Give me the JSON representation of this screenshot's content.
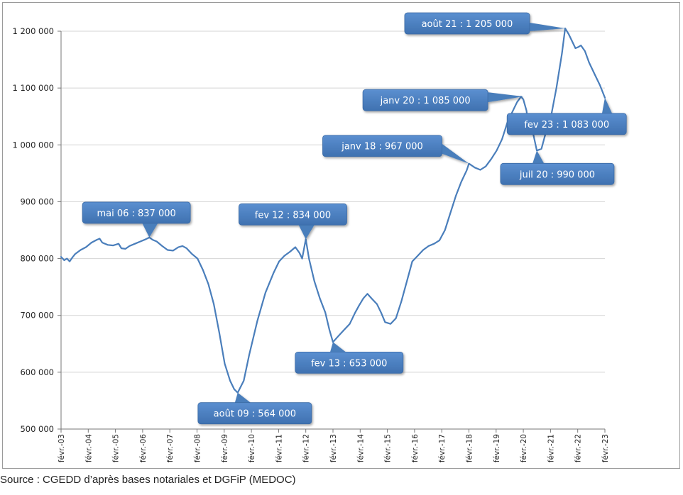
{
  "chart_data": {
    "type": "line",
    "title": "",
    "xlabel": "",
    "ylabel": "",
    "ylim": [
      500000,
      1200000
    ],
    "yticks": [
      500000,
      600000,
      700000,
      800000,
      900000,
      1000000,
      1100000,
      1200000
    ],
    "ytick_labels": [
      "500 000",
      "600 000",
      "700 000",
      "800 000",
      "900 000",
      "1 000 000",
      "1 100 000",
      "1 200 000"
    ],
    "xlim": [
      2003.083,
      2023.083
    ],
    "xticks": [
      2003.083,
      2004.083,
      2005.083,
      2006.083,
      2007.083,
      2008.083,
      2009.083,
      2010.083,
      2011.083,
      2012.083,
      2013.083,
      2014.083,
      2015.083,
      2016.083,
      2017.083,
      2018.083,
      2019.083,
      2020.083,
      2021.083,
      2022.083,
      2023.083
    ],
    "xtick_labels": [
      "févr.-03",
      "févr.-04",
      "févr.-05",
      "févr.-06",
      "févr.-07",
      "févr.-08",
      "févr.-09",
      "févr.-10",
      "févr.-11",
      "févr.-12",
      "févr.-13",
      "févr.-14",
      "févr.-15",
      "févr.-16",
      "févr.-17",
      "févr.-18",
      "févr.-19",
      "févr.-20",
      "févr.-21",
      "févr.-22",
      "févr.-23"
    ],
    "grid": "horizontal",
    "line_color": "#4a7ebb",
    "callout_color": "#4a7ebb",
    "series": [
      {
        "x": [
          2003.083,
          2003.2,
          2003.3,
          2003.4,
          2003.5,
          2003.6,
          2003.8,
          2004.0,
          2004.2,
          2004.4,
          2004.5,
          2004.6,
          2004.8,
          2005.0,
          2005.2,
          2005.3,
          2005.45,
          2005.6,
          2005.8,
          2006.0,
          2006.2,
          2006.33,
          2006.45,
          2006.6,
          2006.8,
          2007.0,
          2007.2,
          2007.4,
          2007.55,
          2007.7,
          2007.9,
          2008.1,
          2008.3,
          2008.5,
          2008.7,
          2008.9,
          2009.1,
          2009.3,
          2009.45,
          2009.58,
          2009.8,
          2010.0,
          2010.3,
          2010.6,
          2010.9,
          2011.1,
          2011.3,
          2011.5,
          2011.7,
          2011.85,
          2011.95,
          2012.083,
          2012.2,
          2012.4,
          2012.6,
          2012.8,
          2012.95,
          2013.083,
          2013.25,
          2013.5,
          2013.7,
          2013.9,
          2014.05,
          2014.2,
          2014.35,
          2014.5,
          2014.7,
          2014.85,
          2015.0,
          2015.2,
          2015.4,
          2015.6,
          2015.8,
          2016.0,
          2016.2,
          2016.4,
          2016.6,
          2016.8,
          2017.0,
          2017.2,
          2017.4,
          2017.6,
          2017.8,
          2018.0,
          2018.083,
          2018.3,
          2018.5,
          2018.7,
          2018.9,
          2019.1,
          2019.3,
          2019.5,
          2019.7,
          2019.85,
          2020.0,
          2020.083,
          2020.2,
          2020.3,
          2020.4,
          2020.58,
          2020.75,
          2020.9,
          2021.1,
          2021.3,
          2021.5,
          2021.62,
          2021.75,
          2021.9,
          2022.0,
          2022.1,
          2022.2,
          2022.35,
          2022.5,
          2022.7,
          2022.9,
          2023.083
        ],
        "y": [
          803000,
          797000,
          800000,
          795000,
          802000,
          808000,
          815000,
          820000,
          828000,
          833000,
          835000,
          828000,
          824000,
          823000,
          826000,
          818000,
          817000,
          822000,
          826000,
          830000,
          834000,
          837000,
          833000,
          830000,
          822000,
          815000,
          814000,
          820000,
          822000,
          818000,
          808000,
          800000,
          780000,
          755000,
          720000,
          670000,
          615000,
          585000,
          570000,
          564000,
          585000,
          630000,
          690000,
          740000,
          775000,
          795000,
          805000,
          812000,
          820000,
          810000,
          800000,
          834000,
          800000,
          760000,
          730000,
          705000,
          675000,
          653000,
          662000,
          675000,
          685000,
          705000,
          718000,
          730000,
          738000,
          730000,
          720000,
          705000,
          688000,
          685000,
          695000,
          725000,
          760000,
          795000,
          805000,
          815000,
          822000,
          826000,
          832000,
          850000,
          880000,
          910000,
          935000,
          955000,
          967000,
          960000,
          956000,
          962000,
          975000,
          990000,
          1010000,
          1040000,
          1060000,
          1075000,
          1085000,
          1080000,
          1060000,
          1020000,
          1030000,
          990000,
          993000,
          1020000,
          1050000,
          1100000,
          1160000,
          1205000,
          1195000,
          1180000,
          1170000,
          1172000,
          1175000,
          1165000,
          1145000,
          1125000,
          1105000,
          1083000
        ]
      }
    ],
    "annotations": [
      {
        "label": "mai 06 : 837 000",
        "x": 2006.33,
        "y": 837000,
        "placement": "above"
      },
      {
        "label": "août 09 : 564 000",
        "x": 2009.58,
        "y": 564000,
        "placement": "below"
      },
      {
        "label": "fev 12 : 834 000",
        "x": 2012.083,
        "y": 834000,
        "placement": "above"
      },
      {
        "label": "fev 13 : 653 000",
        "x": 2013.083,
        "y": 653000,
        "placement": "below"
      },
      {
        "label": "janv  18 : 967 000",
        "x": 2018.083,
        "y": 967000,
        "placement": "above-left"
      },
      {
        "label": "janv 20 : 1 085 000",
        "x": 2020.083,
        "y": 1085000,
        "placement": "left"
      },
      {
        "label": "juil 20 : 990 000",
        "x": 2020.58,
        "y": 990000,
        "placement": "below"
      },
      {
        "label": "août 21 : 1 205 000",
        "x": 2021.62,
        "y": 1205000,
        "placement": "left"
      },
      {
        "label": "fev 23 : 1 083 000",
        "x": 2023.083,
        "y": 1083000,
        "placement": "below"
      }
    ]
  },
  "source": "Source : CGEDD d’après bases notariales et DGFiP (MEDOC)"
}
